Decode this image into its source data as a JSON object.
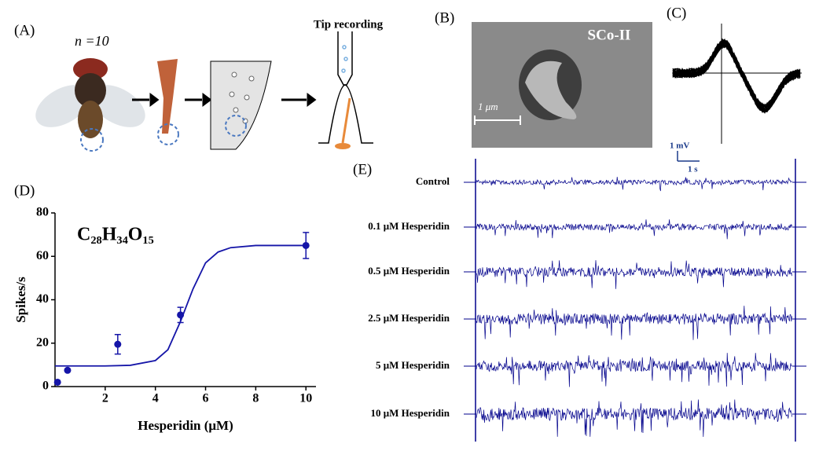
{
  "panels": {
    "a": {
      "label": "(A)",
      "n": "n =10",
      "title": "Tip recording"
    },
    "b": {
      "label": "(B)",
      "sensillum": "SCo-II",
      "scale": "1 μm"
    },
    "c": {
      "label": "(C)"
    },
    "d": {
      "label": "(D)"
    },
    "scale_bar": {
      "voltage": "1 mV",
      "time": "1 s"
    },
    "e": {
      "label": "(E)",
      "traces": [
        "Control",
        "0.1 μM Hesperidin",
        "0.5 μM Hesperidin",
        "2.5 μM Hesperidin",
        "5  μM Hesperidin",
        "10 μM    Hesperidin"
      ]
    }
  },
  "chart_data": {
    "type": "scatter",
    "title": "C₂₈H₃₄O₁₅",
    "x_label": "Hesperidin (μM)",
    "y_label": "Spikes/s",
    "xlim": [
      0,
      10.4
    ],
    "ylim": [
      0,
      80
    ],
    "xticks": [
      2,
      4,
      6,
      8,
      10
    ],
    "yticks": [
      0,
      20,
      40,
      60,
      80
    ],
    "series": [
      {
        "style": "points",
        "color": "#1515a8",
        "x": [
          0.1,
          0.5,
          2.5,
          5,
          10
        ],
        "values": [
          2,
          7.5,
          19.5,
          33,
          65
        ],
        "errors": [
          null,
          null,
          4.5,
          3.5,
          6
        ]
      },
      {
        "style": "line",
        "color": "#1515a8",
        "x": [
          0,
          1,
          2,
          3,
          4,
          4.5,
          5,
          5.5,
          6,
          6.5,
          7,
          8,
          10
        ],
        "values": [
          9.5,
          9.5,
          9.5,
          9.8,
          12,
          17,
          30,
          45,
          57,
          62,
          64,
          65,
          65
        ]
      }
    ]
  }
}
